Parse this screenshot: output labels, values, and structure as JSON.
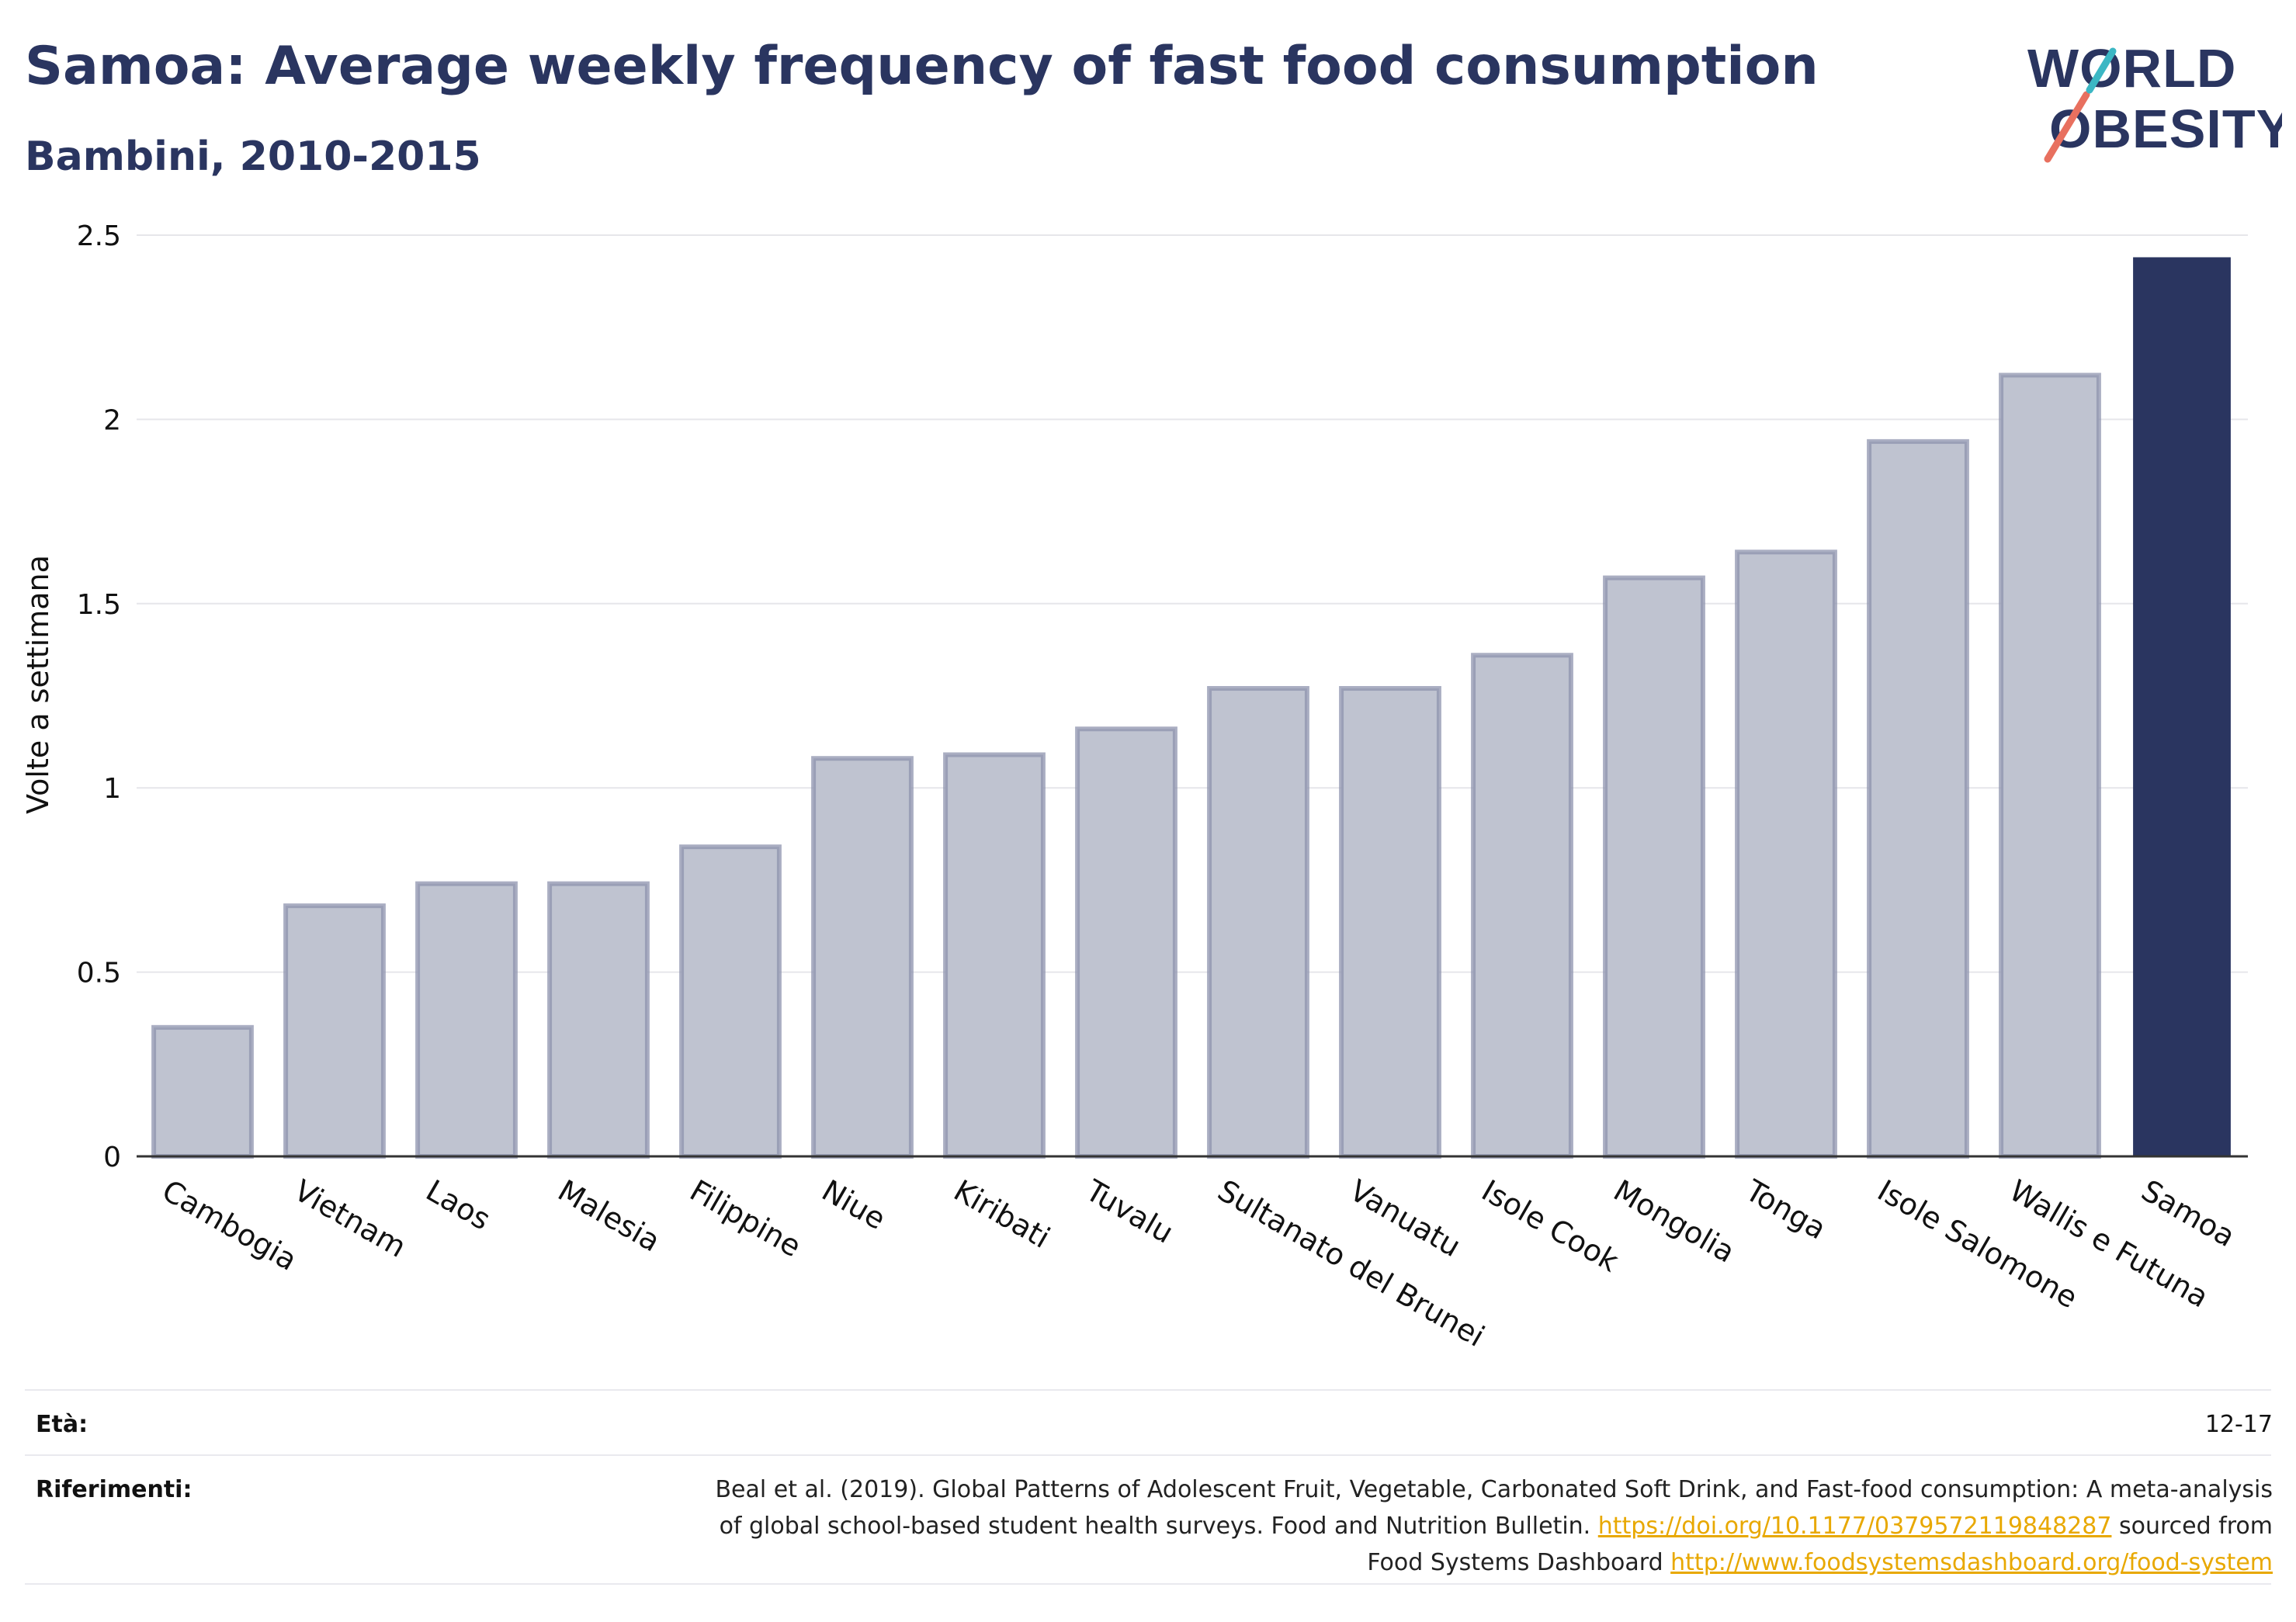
{
  "header": {
    "title": "Samoa: Average weekly frequency of fast food consumption",
    "subtitle": "Bambini, 2010-2015"
  },
  "logo": {
    "line1": "WORLD",
    "line2": "OBESITY"
  },
  "chart_data": {
    "type": "bar",
    "title": "Samoa: Average weekly frequency of fast food consumption",
    "subtitle": "Bambini, 2010-2015",
    "ylabel": "Volte a settimana",
    "xlabel": "",
    "ylim": [
      0,
      2.5
    ],
    "yticks": [
      0,
      0.5,
      1,
      1.5,
      2,
      2.5
    ],
    "ytick_labels": [
      "0",
      "0.5",
      "1",
      "1.5",
      "2",
      "2.5"
    ],
    "grid": true,
    "categories": [
      "Cambogia",
      "Vietnam",
      "Laos",
      "Malesia",
      "Filippine",
      "Niue",
      "Kiribati",
      "Tuvalu",
      "Sultanato del Brunei",
      "Vanuatu",
      "Isole Cook",
      "Mongolia",
      "Tonga",
      "Isole Salomone",
      "Wallis e Futuna",
      "Samoa"
    ],
    "values": [
      0.35,
      0.68,
      0.74,
      0.74,
      0.84,
      1.08,
      1.09,
      1.16,
      1.27,
      1.27,
      1.36,
      1.57,
      1.64,
      1.94,
      2.12,
      2.44
    ],
    "highlight": "Samoa",
    "colors": {
      "bar": "#bfc3d0",
      "bar_border": "#8d93ad",
      "highlight": "#2a3560"
    }
  },
  "footer": {
    "age_label": "Età:",
    "age_value": "12-17",
    "ref_label": "Riferimenti:",
    "ref_line1": "Beal et al. (2019). Global Patterns of Adolescent Fruit, Vegetable, Carbonated Soft Drink, and Fast-food consumption: A meta-analysis",
    "ref_line2_pre": "of global school-based student health surveys. Food and Nutrition Bulletin. ",
    "ref_link1": "https://doi.org/10.1177/0379572119848287",
    "ref_line2_post": " sourced from",
    "ref_line3_pre": "Food Systems Dashboard ",
    "ref_link2": "http://www.foodsystemsdashboard.org/food-system"
  }
}
